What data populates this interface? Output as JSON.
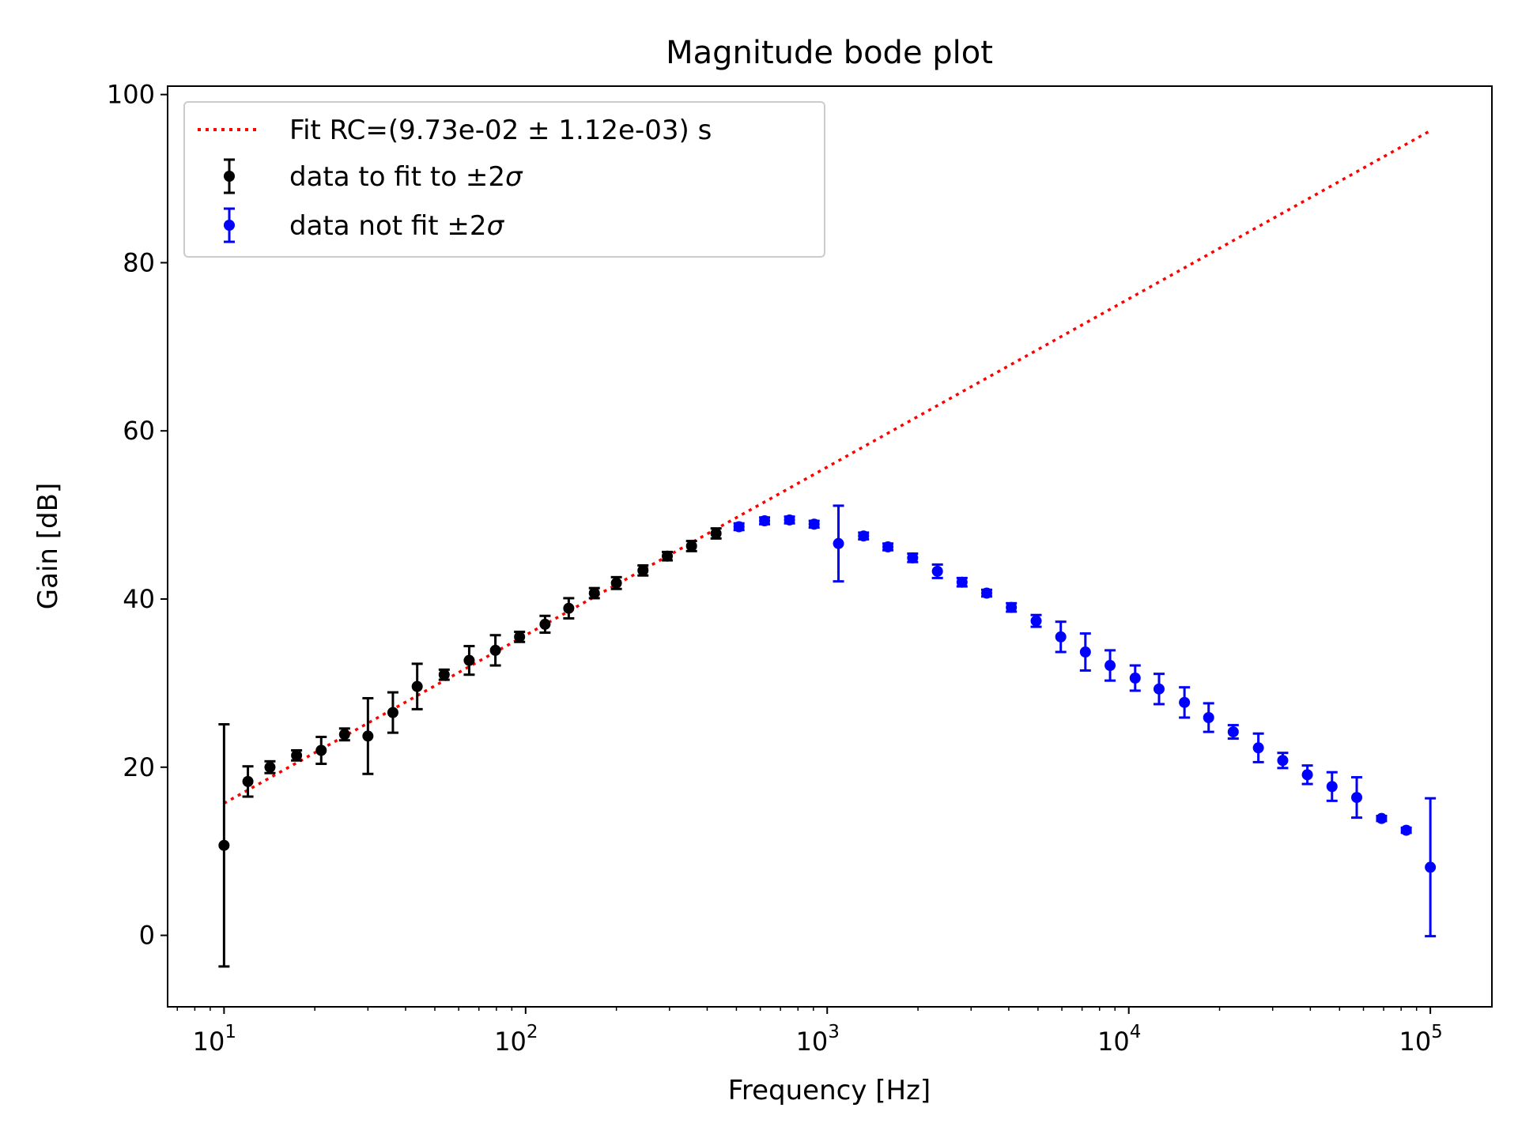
{
  "chart_data": {
    "type": "scatter",
    "title": "Magnitude bode plot",
    "xlabel": "Frequency [Hz]",
    "ylabel": "Gain [dB]",
    "xscale": "log",
    "xlim": [
      6.5,
      160000
    ],
    "ylim": [
      -8.5,
      101
    ],
    "x_ticks": [
      {
        "value": 10,
        "base": "10",
        "exp": "1"
      },
      {
        "value": 100,
        "base": "10",
        "exp": "2"
      },
      {
        "value": 1000,
        "base": "10",
        "exp": "3"
      },
      {
        "value": 10000,
        "base": "10",
        "exp": "4"
      },
      {
        "value": 100000,
        "base": "10",
        "exp": "5"
      }
    ],
    "y_ticks": [
      0,
      20,
      40,
      60,
      80,
      100
    ],
    "grid": false,
    "legend": {
      "placement": "top-left",
      "entries": [
        {
          "label": "Fit RC=(9.73e-02 ± 1.12e-03) s",
          "kind": "line",
          "color": "#ff0000"
        },
        {
          "label": "data to fit to ±2",
          "sigma": "σ",
          "kind": "errorbar",
          "color": "#000000"
        },
        {
          "label": "data not fit ±2",
          "sigma": "σ",
          "kind": "errorbar",
          "color": "#0000ff"
        }
      ]
    },
    "series": [
      {
        "label": "Fit RC=(9.73e-02 ± 1.12e-03) s",
        "kind": "line",
        "style": "dotted",
        "color": "#ff0000",
        "x": [
          10,
          100000
        ],
        "y": [
          15.7,
          95.7
        ]
      },
      {
        "label": "data to fit to ±2σ",
        "kind": "errorbar",
        "color": "#000000",
        "points": [
          {
            "x": 10.0,
            "y": 10.7,
            "err": 14.4
          },
          {
            "x": 12.0,
            "y": 18.3,
            "err": 1.8
          },
          {
            "x": 14.2,
            "y": 20.0,
            "err": 0.7
          },
          {
            "x": 17.4,
            "y": 21.4,
            "err": 0.6
          },
          {
            "x": 21.0,
            "y": 22.0,
            "err": 1.6
          },
          {
            "x": 25.1,
            "y": 23.9,
            "err": 0.7
          },
          {
            "x": 30.0,
            "y": 23.7,
            "err": 4.5
          },
          {
            "x": 36.3,
            "y": 26.5,
            "err": 2.4
          },
          {
            "x": 43.7,
            "y": 29.6,
            "err": 2.7
          },
          {
            "x": 53.7,
            "y": 31.0,
            "err": 0.6
          },
          {
            "x": 65.0,
            "y": 32.7,
            "err": 1.7
          },
          {
            "x": 79.4,
            "y": 33.9,
            "err": 1.8
          },
          {
            "x": 95.5,
            "y": 35.5,
            "err": 0.6
          },
          {
            "x": 116.0,
            "y": 37.0,
            "err": 1.0
          },
          {
            "x": 139.0,
            "y": 38.9,
            "err": 1.2
          },
          {
            "x": 169.0,
            "y": 40.7,
            "err": 0.6
          },
          {
            "x": 200.0,
            "y": 41.9,
            "err": 0.7
          },
          {
            "x": 245.0,
            "y": 43.4,
            "err": 0.6
          },
          {
            "x": 295.0,
            "y": 45.1,
            "err": 0.5
          },
          {
            "x": 355.0,
            "y": 46.3,
            "err": 0.6
          },
          {
            "x": 428.0,
            "y": 47.8,
            "err": 0.6
          }
        ]
      },
      {
        "label": "data not fit ±2σ",
        "kind": "errorbar",
        "color": "#0000ff",
        "points": [
          {
            "x": 510.0,
            "y": 48.6,
            "err": 0.4
          },
          {
            "x": 620.0,
            "y": 49.3,
            "err": 0.4
          },
          {
            "x": 750.0,
            "y": 49.4,
            "err": 0.4
          },
          {
            "x": 905.0,
            "y": 48.9,
            "err": 0.4
          },
          {
            "x": 1090.0,
            "y": 46.6,
            "err": 4.5
          },
          {
            "x": 1320.0,
            "y": 47.5,
            "err": 0.4
          },
          {
            "x": 1590.0,
            "y": 46.2,
            "err": 0.4
          },
          {
            "x": 1920.0,
            "y": 44.9,
            "err": 0.5
          },
          {
            "x": 2320.0,
            "y": 43.3,
            "err": 0.8
          },
          {
            "x": 2800.0,
            "y": 42.0,
            "err": 0.5
          },
          {
            "x": 3380.0,
            "y": 40.7,
            "err": 0.4
          },
          {
            "x": 4080.0,
            "y": 39.0,
            "err": 0.5
          },
          {
            "x": 4930.0,
            "y": 37.4,
            "err": 0.7
          },
          {
            "x": 5950.0,
            "y": 35.5,
            "err": 1.8
          },
          {
            "x": 7180.0,
            "y": 33.7,
            "err": 2.2
          },
          {
            "x": 8670.0,
            "y": 32.1,
            "err": 1.8
          },
          {
            "x": 10500.0,
            "y": 30.6,
            "err": 1.5
          },
          {
            "x": 12600.0,
            "y": 29.3,
            "err": 1.8
          },
          {
            "x": 15300.0,
            "y": 27.7,
            "err": 1.8
          },
          {
            "x": 18400.0,
            "y": 25.9,
            "err": 1.7
          },
          {
            "x": 22200.0,
            "y": 24.2,
            "err": 0.8
          },
          {
            "x": 26900.0,
            "y": 22.3,
            "err": 1.7
          },
          {
            "x": 32400.0,
            "y": 20.8,
            "err": 0.9
          },
          {
            "x": 39100.0,
            "y": 19.1,
            "err": 1.1
          },
          {
            "x": 47200.0,
            "y": 17.7,
            "err": 1.7
          },
          {
            "x": 57000.0,
            "y": 16.4,
            "err": 2.4
          },
          {
            "x": 68900.0,
            "y": 13.9,
            "err": 0.3
          },
          {
            "x": 83200.0,
            "y": 12.5,
            "err": 0.3
          },
          {
            "x": 100000.0,
            "y": 8.1,
            "err": 8.2
          }
        ]
      }
    ]
  }
}
